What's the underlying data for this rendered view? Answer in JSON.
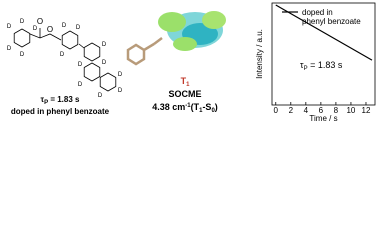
{
  "molecule": {
    "atom_label": "D",
    "oxygen_label": "O",
    "lifetime": {
      "symbol": "τ",
      "sub": "P",
      "rest": " = 1.83 s"
    },
    "host": "doped in phenyl benzoate"
  },
  "orbital": {
    "state": {
      "symbol": "T",
      "sub": "1"
    },
    "method": "SOCME",
    "value": {
      "number": "4.38 cm",
      "sup": "-1",
      "open": "(T",
      "sub1": "1",
      "dash": "-S",
      "sub2": "0",
      "close": ")"
    }
  },
  "chart_data": {
    "type": "line",
    "x_label": "Time / s",
    "y_label": "Intensity / a.u.",
    "x": [
      0,
      12.8
    ],
    "series": [
      {
        "name": "doped in phenyl benzoate",
        "color": "#000000",
        "values": [
          0.98,
          0.44
        ]
      }
    ],
    "xlim": [
      -0.5,
      13.2
    ],
    "xticks": [
      0,
      2,
      4,
      6,
      8,
      10,
      12
    ],
    "ylim": [
      0,
      1
    ],
    "annotation": {
      "symbol": "τ",
      "sub": "P",
      "rest": " = 1.83 s"
    },
    "legend": "upper right"
  }
}
